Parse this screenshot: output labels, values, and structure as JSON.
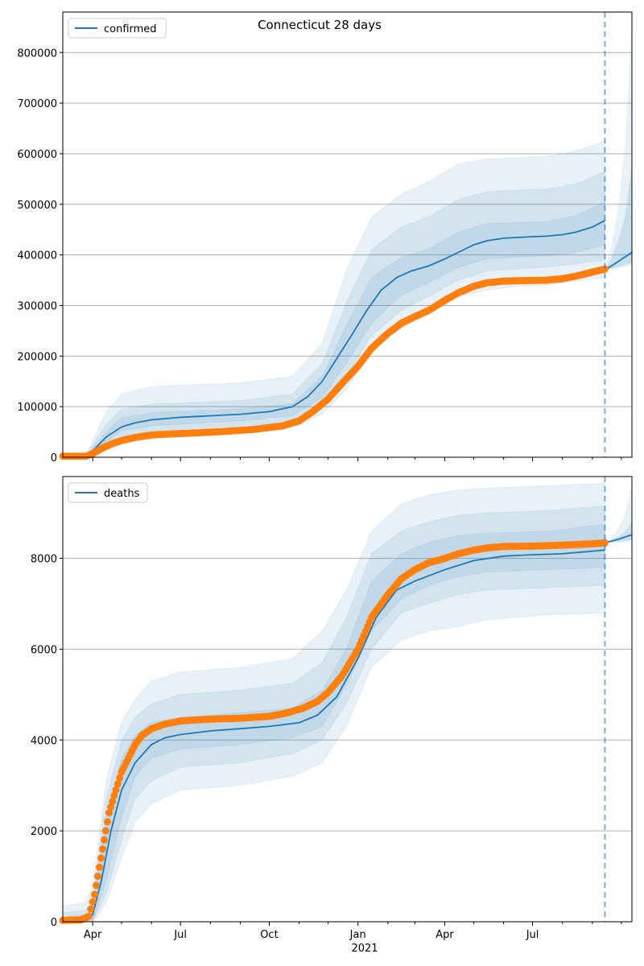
{
  "title": "Connecticut 28 days",
  "colors": {
    "series": "#1f77b4",
    "observed": "#ff7f0e",
    "band": "#1f77b4",
    "grid": "#b0b0b0"
  },
  "x_ticks": [
    "Apr",
    "Jul",
    "Oct",
    "Jan",
    "Apr",
    "Jul"
  ],
  "x_year_label": "2021",
  "chart_data": [
    {
      "type": "line",
      "panel": "top",
      "legend": "confirmed",
      "legend_position": "top-left",
      "grid": "horizontal",
      "x_range": [
        "2020-03-01",
        "2021-10-12"
      ],
      "ylim": [
        0,
        880000
      ],
      "yticks": [
        0,
        100000,
        200000,
        300000,
        400000,
        500000,
        600000,
        700000,
        800000
      ],
      "forecast_start": "2021-09-14",
      "bands": [
        {
          "level": "outer",
          "x": [
            "2020-03-01",
            "2020-03-25",
            "2020-04-15",
            "2020-05-01",
            "2020-06-01",
            "2020-09-01",
            "2020-10-25",
            "2020-11-25",
            "2020-12-20",
            "2021-01-15",
            "2021-02-15",
            "2021-03-15",
            "2021-04-15",
            "2021-05-15",
            "2021-06-15",
            "2021-07-15",
            "2021-08-15",
            "2021-09-14"
          ],
          "lower": [
            0,
            0,
            15000,
            30000,
            40000,
            48000,
            58000,
            85000,
            135000,
            210000,
            255000,
            285000,
            318000,
            330000,
            338000,
            340000,
            348000,
            355000
          ],
          "upper": [
            5000,
            5000,
            90000,
            125000,
            140000,
            147000,
            160000,
            225000,
            370000,
            475000,
            520000,
            545000,
            580000,
            590000,
            592000,
            595000,
            605000,
            625000
          ]
        },
        {
          "level": "middle",
          "x": [
            "2020-03-01",
            "2020-03-25",
            "2020-04-15",
            "2020-05-01",
            "2020-06-01",
            "2020-09-01",
            "2020-10-25",
            "2020-11-25",
            "2020-12-20",
            "2021-01-15",
            "2021-02-15",
            "2021-03-15",
            "2021-04-15",
            "2021-05-15",
            "2021-06-15",
            "2021-07-15",
            "2021-08-15",
            "2021-09-14"
          ],
          "lower": [
            0,
            0,
            22000,
            40000,
            52000,
            62000,
            70000,
            100000,
            160000,
            240000,
            290000,
            318000,
            350000,
            368000,
            372000,
            375000,
            382000,
            390000
          ],
          "upper": [
            3000,
            3000,
            65000,
            95000,
            105000,
            112000,
            125000,
            185000,
            305000,
            410000,
            455000,
            475000,
            510000,
            525000,
            528000,
            530000,
            540000,
            565000
          ]
        },
        {
          "level": "inner",
          "x": [
            "2020-03-01",
            "2020-03-25",
            "2020-04-15",
            "2020-05-01",
            "2020-06-01",
            "2020-09-01",
            "2020-10-25",
            "2020-11-25",
            "2020-12-20",
            "2021-01-15",
            "2021-02-15",
            "2021-03-15",
            "2021-04-15",
            "2021-05-15",
            "2021-06-15",
            "2021-07-15",
            "2021-08-15",
            "2021-09-14"
          ],
          "lower": [
            0,
            0,
            30000,
            52000,
            62000,
            72000,
            82000,
            118000,
            185000,
            265000,
            320000,
            345000,
            375000,
            392000,
            396000,
            398000,
            405000,
            420000
          ],
          "upper": [
            1500,
            1500,
            50000,
            78000,
            88000,
            96000,
            106000,
            160000,
            260000,
            355000,
            395000,
            412000,
            445000,
            462000,
            464000,
            466000,
            478000,
            505000
          ]
        }
      ],
      "model": {
        "x": [
          "2020-03-01",
          "2020-03-25",
          "2020-04-05",
          "2020-04-15",
          "2020-05-01",
          "2020-05-15",
          "2020-06-01",
          "2020-07-01",
          "2020-08-01",
          "2020-09-01",
          "2020-10-01",
          "2020-10-25",
          "2020-11-10",
          "2020-11-25",
          "2020-12-10",
          "2020-12-25",
          "2021-01-10",
          "2021-01-25",
          "2021-02-10",
          "2021-02-25",
          "2021-03-15",
          "2021-04-01",
          "2021-04-15",
          "2021-05-01",
          "2021-05-15",
          "2021-06-01",
          "2021-07-01",
          "2021-07-15",
          "2021-08-01",
          "2021-08-15",
          "2021-09-01",
          "2021-09-14"
        ],
        "y": [
          1000,
          1000,
          20000,
          40000,
          60000,
          68000,
          74000,
          79000,
          82000,
          85000,
          90000,
          100000,
          120000,
          150000,
          195000,
          240000,
          290000,
          330000,
          355000,
          368000,
          378000,
          392000,
          405000,
          420000,
          428000,
          433000,
          436000,
          437000,
          440000,
          445000,
          455000,
          468000
        ]
      },
      "forecast": {
        "x": [
          "2021-09-14",
          "2021-09-28",
          "2021-10-12"
        ],
        "y": [
          370000,
          387000,
          405000
        ]
      },
      "forecast_band_outer": {
        "x": [
          "2021-09-14",
          "2021-09-21",
          "2021-09-28",
          "2021-10-05",
          "2021-10-12"
        ],
        "lower": [
          370000,
          372000,
          374000,
          376000,
          380000
        ],
        "upper": [
          372000,
          420000,
          500000,
          620000,
          860000
        ]
      },
      "forecast_band_inner": {
        "x": [
          "2021-09-14",
          "2021-09-21",
          "2021-09-28",
          "2021-10-05",
          "2021-10-12"
        ],
        "lower": [
          370000,
          373000,
          376000,
          380000,
          385000
        ],
        "upper": [
          371000,
          395000,
          430000,
          480000,
          580000
        ]
      },
      "observed": {
        "x": [
          "2020-03-01",
          "2020-03-25",
          "2020-04-01",
          "2020-04-10",
          "2020-04-20",
          "2020-05-01",
          "2020-05-15",
          "2020-06-01",
          "2020-06-20",
          "2020-07-15",
          "2020-08-15",
          "2020-09-15",
          "2020-10-15",
          "2020-11-01",
          "2020-11-15",
          "2020-12-01",
          "2020-12-15",
          "2021-01-01",
          "2021-01-15",
          "2021-02-01",
          "2021-02-15",
          "2021-03-01",
          "2021-03-15",
          "2021-04-01",
          "2021-04-15",
          "2021-05-01",
          "2021-05-15",
          "2021-06-01",
          "2021-06-15",
          "2021-07-01",
          "2021-07-15",
          "2021-08-01",
          "2021-08-15",
          "2021-09-01",
          "2021-09-14"
        ],
        "y": [
          2000,
          2000,
          7000,
          17000,
          26000,
          33000,
          39000,
          44000,
          46000,
          48000,
          51000,
          55000,
          62000,
          72000,
          90000,
          115000,
          145000,
          180000,
          215000,
          245000,
          265000,
          278000,
          290000,
          310000,
          325000,
          338000,
          345000,
          348000,
          349000,
          349500,
          350000,
          353000,
          358000,
          366000,
          372000
        ]
      }
    },
    {
      "type": "line",
      "panel": "bottom",
      "legend": "deaths",
      "legend_position": "top-left",
      "grid": "horizontal",
      "x_range": [
        "2020-03-01",
        "2021-10-12"
      ],
      "ylim": [
        0,
        9800
      ],
      "yticks": [
        0,
        2000,
        4000,
        6000,
        8000
      ],
      "forecast_start": "2021-09-14",
      "bands": [
        {
          "level": "outer",
          "x": [
            "2020-03-01",
            "2020-03-25",
            "2020-04-01",
            "2020-04-15",
            "2020-05-01",
            "2020-05-15",
            "2020-06-01",
            "2020-07-01",
            "2020-09-01",
            "2020-10-25",
            "2020-11-25",
            "2020-12-20",
            "2021-01-15",
            "2021-02-15",
            "2021-03-15",
            "2021-04-15",
            "2021-05-15",
            "2021-07-15",
            "2021-09-14"
          ],
          "lower": [
            0,
            0,
            0,
            400,
            1400,
            2200,
            2600,
            2900,
            3000,
            3200,
            3500,
            4300,
            5600,
            6200,
            6400,
            6500,
            6650,
            6750,
            6800
          ],
          "upper": [
            350,
            420,
            800,
            3100,
            4400,
            4900,
            5300,
            5500,
            5600,
            5800,
            6400,
            7300,
            8600,
            9200,
            9400,
            9500,
            9550,
            9600,
            9650
          ]
        },
        {
          "level": "middle",
          "x": [
            "2020-03-01",
            "2020-03-25",
            "2020-04-01",
            "2020-04-15",
            "2020-05-01",
            "2020-05-15",
            "2020-06-01",
            "2020-07-01",
            "2020-09-01",
            "2020-10-25",
            "2020-11-25",
            "2020-12-20",
            "2021-01-15",
            "2021-02-15",
            "2021-03-15",
            "2021-04-15",
            "2021-05-15",
            "2021-07-15",
            "2021-09-14"
          ],
          "lower": [
            0,
            0,
            0,
            600,
            1800,
            2700,
            3100,
            3400,
            3500,
            3700,
            4000,
            4800,
            6000,
            6800,
            7000,
            7200,
            7300,
            7350,
            7400
          ],
          "upper": [
            200,
            250,
            500,
            2700,
            4000,
            4500,
            4800,
            5000,
            5100,
            5250,
            5700,
            6700,
            8100,
            8600,
            8800,
            8950,
            9000,
            9050,
            9150
          ]
        },
        {
          "level": "inner",
          "x": [
            "2020-03-01",
            "2020-03-25",
            "2020-04-01",
            "2020-04-15",
            "2020-05-01",
            "2020-05-15",
            "2020-06-01",
            "2020-07-01",
            "2020-09-01",
            "2020-10-25",
            "2020-11-25",
            "2020-12-20",
            "2021-01-15",
            "2021-02-15",
            "2021-03-15",
            "2021-04-15",
            "2021-05-15",
            "2021-07-15",
            "2021-09-14"
          ],
          "lower": [
            0,
            0,
            0,
            900,
            2300,
            3200,
            3600,
            3800,
            3900,
            4050,
            4300,
            5200,
            6400,
            7100,
            7400,
            7600,
            7700,
            7750,
            7800
          ],
          "upper": [
            100,
            150,
            300,
            2300,
            3600,
            4100,
            4400,
            4500,
            4600,
            4700,
            5100,
            6000,
            7500,
            8100,
            8350,
            8500,
            8550,
            8600,
            8750
          ]
        }
      ],
      "model": {
        "x": [
          "2020-03-01",
          "2020-03-25",
          "2020-04-01",
          "2020-04-10",
          "2020-04-20",
          "2020-05-01",
          "2020-05-15",
          "2020-06-01",
          "2020-06-15",
          "2020-07-01",
          "2020-08-01",
          "2020-09-01",
          "2020-10-01",
          "2020-11-01",
          "2020-11-20",
          "2020-12-10",
          "2021-01-01",
          "2021-01-20",
          "2021-02-10",
          "2021-03-01",
          "2021-04-01",
          "2021-05-01",
          "2021-06-01",
          "2021-07-01",
          "2021-08-01",
          "2021-09-14"
        ],
        "y": [
          30,
          30,
          150,
          900,
          2000,
          2900,
          3500,
          3900,
          4050,
          4120,
          4200,
          4250,
          4300,
          4380,
          4550,
          4950,
          5800,
          6700,
          7300,
          7500,
          7750,
          7950,
          8050,
          8080,
          8100,
          8180
        ]
      },
      "forecast": {
        "x": [
          "2021-09-14",
          "2021-09-28",
          "2021-10-12"
        ],
        "y": [
          8340,
          8420,
          8520
        ]
      },
      "forecast_band_outer": {
        "x": [
          "2021-09-14",
          "2021-09-21",
          "2021-09-28",
          "2021-10-05",
          "2021-10-12"
        ],
        "lower": [
          8340,
          8345,
          8350,
          8360,
          8380
        ],
        "upper": [
          8345,
          8450,
          8650,
          9000,
          9650
        ]
      },
      "forecast_band_inner": {
        "x": [
          "2021-09-14",
          "2021-09-21",
          "2021-09-28",
          "2021-10-05",
          "2021-10-12"
        ],
        "lower": [
          8340,
          8350,
          8360,
          8380,
          8400
        ],
        "upper": [
          8342,
          8400,
          8480,
          8600,
          8800
        ]
      },
      "observed": {
        "x": [
          "2020-03-01",
          "2020-03-20",
          "2020-03-28",
          "2020-04-03",
          "2020-04-08",
          "2020-04-13",
          "2020-04-18",
          "2020-04-25",
          "2020-05-01",
          "2020-05-08",
          "2020-05-15",
          "2020-05-22",
          "2020-06-01",
          "2020-06-15",
          "2020-07-01",
          "2020-08-01",
          "2020-09-01",
          "2020-10-01",
          "2020-10-20",
          "2020-11-05",
          "2020-11-20",
          "2020-12-01",
          "2020-12-15",
          "2021-01-01",
          "2021-01-15",
          "2021-02-01",
          "2021-02-15",
          "2021-03-01",
          "2021-03-15",
          "2021-04-01",
          "2021-04-15",
          "2021-05-01",
          "2021-05-15",
          "2021-06-01",
          "2021-07-01",
          "2021-08-01",
          "2021-09-01",
          "2021-09-14"
        ],
        "y": [
          30,
          40,
          120,
          600,
          1200,
          1800,
          2400,
          2900,
          3300,
          3600,
          3900,
          4100,
          4250,
          4350,
          4420,
          4460,
          4480,
          4520,
          4600,
          4700,
          4850,
          5050,
          5400,
          6000,
          6700,
          7200,
          7550,
          7750,
          7900,
          8000,
          8100,
          8180,
          8230,
          8260,
          8270,
          8290,
          8320,
          8340
        ]
      }
    }
  ]
}
